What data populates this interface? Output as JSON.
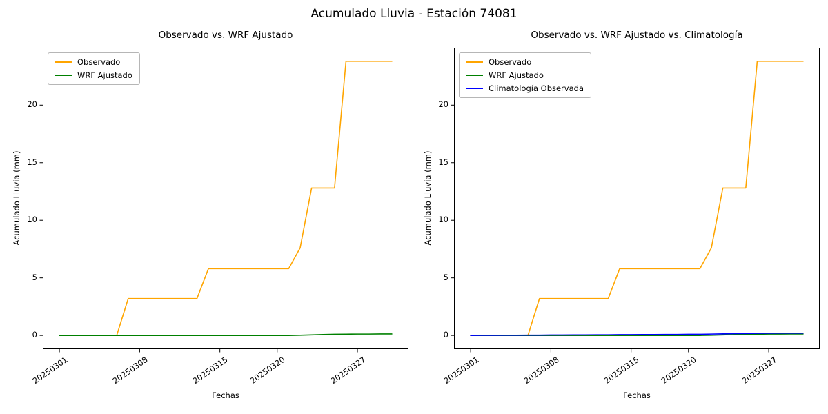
{
  "figure": {
    "suptitle": "Acumulado Lluvia - Estación 74081"
  },
  "chart_data": [
    {
      "type": "line",
      "title": "Observado vs. WRF Ajustado",
      "xlabel": "Fechas",
      "ylabel": "Acumulado Lluvia (mm)",
      "legend_position": "upper-left",
      "grid": false,
      "x": [
        "20250301",
        "20250302",
        "20250303",
        "20250304",
        "20250305",
        "20250306",
        "20250307",
        "20250308",
        "20250309",
        "20250310",
        "20250311",
        "20250312",
        "20250313",
        "20250314",
        "20250315",
        "20250316",
        "20250317",
        "20250318",
        "20250319",
        "20250320",
        "20250321",
        "20250322",
        "20250323",
        "20250324",
        "20250325",
        "20250326",
        "20250327",
        "20250328",
        "20250329",
        "20250330"
      ],
      "xtick_indices": [
        0,
        7,
        14,
        19,
        26
      ],
      "xtick_labels": [
        "20250301",
        "20250308",
        "20250315",
        "20250320",
        "20250327"
      ],
      "yticks": [
        0,
        5,
        10,
        15,
        20
      ],
      "ylim": [
        -1.19,
        24.99
      ],
      "x_margin": 1.45,
      "series": [
        {
          "name": "Observado",
          "color": "#ffa500",
          "values": [
            0,
            0,
            0,
            0,
            0,
            0,
            3.2,
            3.2,
            3.2,
            3.2,
            3.2,
            3.2,
            3.2,
            5.8,
            5.8,
            5.8,
            5.8,
            5.8,
            5.8,
            5.8,
            5.8,
            7.6,
            12.8,
            12.8,
            12.8,
            23.8,
            23.8,
            23.8,
            23.8,
            23.8
          ]
        },
        {
          "name": "WRF Ajustado",
          "color": "#008000",
          "values": [
            0,
            0,
            0,
            0,
            0,
            0,
            0,
            0,
            0,
            0,
            0,
            0,
            0,
            0,
            0,
            0,
            0,
            0,
            0,
            0,
            0,
            0.02,
            0.05,
            0.08,
            0.1,
            0.11,
            0.12,
            0.12,
            0.13,
            0.13
          ]
        }
      ]
    },
    {
      "type": "line",
      "title": "Observado vs. WRF Ajustado vs. Climatología",
      "xlabel": "Fechas",
      "ylabel": "Acumulado Lluvia (mm)",
      "legend_position": "upper-left",
      "grid": false,
      "x": [
        "20250301",
        "20250302",
        "20250303",
        "20250304",
        "20250305",
        "20250306",
        "20250307",
        "20250308",
        "20250309",
        "20250310",
        "20250311",
        "20250312",
        "20250313",
        "20250314",
        "20250315",
        "20250316",
        "20250317",
        "20250318",
        "20250319",
        "20250320",
        "20250321",
        "20250322",
        "20250323",
        "20250324",
        "20250325",
        "20250326",
        "20250327",
        "20250328",
        "20250329",
        "20250330"
      ],
      "xtick_indices": [
        0,
        7,
        14,
        19,
        26
      ],
      "xtick_labels": [
        "20250301",
        "20250308",
        "20250315",
        "20250320",
        "20250327"
      ],
      "yticks": [
        0,
        5,
        10,
        15,
        20
      ],
      "ylim": [
        -1.19,
        24.99
      ],
      "x_margin": 1.45,
      "series": [
        {
          "name": "Observado",
          "color": "#ffa500",
          "values": [
            0,
            0,
            0,
            0,
            0,
            0,
            3.2,
            3.2,
            3.2,
            3.2,
            3.2,
            3.2,
            3.2,
            5.8,
            5.8,
            5.8,
            5.8,
            5.8,
            5.8,
            5.8,
            5.8,
            7.6,
            12.8,
            12.8,
            12.8,
            23.8,
            23.8,
            23.8,
            23.8,
            23.8
          ]
        },
        {
          "name": "WRF Ajustado",
          "color": "#008000",
          "values": [
            0,
            0,
            0,
            0,
            0,
            0,
            0,
            0,
            0,
            0,
            0,
            0,
            0,
            0,
            0,
            0,
            0,
            0,
            0,
            0,
            0,
            0.02,
            0.05,
            0.08,
            0.1,
            0.11,
            0.12,
            0.12,
            0.13,
            0.13
          ]
        },
        {
          "name": "Climatología Observada",
          "color": "#0000ff",
          "values": [
            0,
            0.01,
            0.01,
            0.02,
            0.02,
            0.03,
            0.03,
            0.04,
            0.04,
            0.05,
            0.05,
            0.06,
            0.06,
            0.07,
            0.07,
            0.08,
            0.08,
            0.09,
            0.09,
            0.1,
            0.1,
            0.12,
            0.14,
            0.16,
            0.17,
            0.18,
            0.19,
            0.2,
            0.2,
            0.2
          ]
        }
      ]
    }
  ]
}
